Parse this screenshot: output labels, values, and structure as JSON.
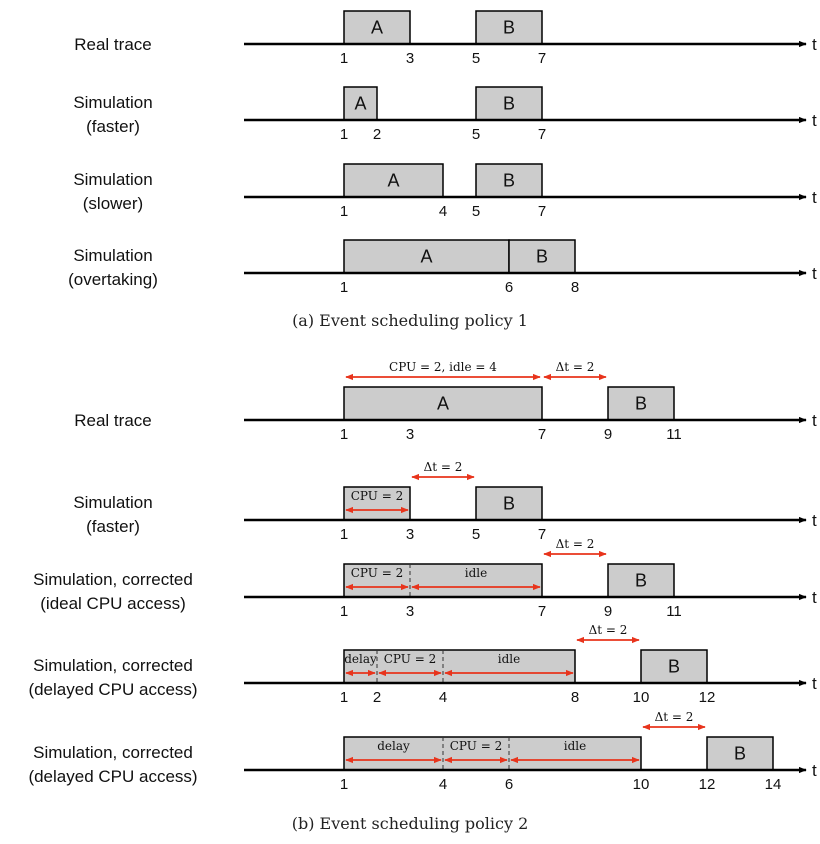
{
  "axis_label": "t",
  "panels": [
    {
      "caption": "(a) Event scheduling policy 1",
      "rows": [
        {
          "label": [
            "Real trace"
          ],
          "ticks": [
            1,
            3,
            5,
            7
          ],
          "boxes": [
            {
              "label": "A",
              "start": 1,
              "end": 3
            },
            {
              "label": "B",
              "start": 5,
              "end": 7
            }
          ]
        },
        {
          "label": [
            "Simulation",
            "(faster)"
          ],
          "ticks": [
            1,
            2,
            5,
            7
          ],
          "boxes": [
            {
              "label": "A",
              "start": 1,
              "end": 2
            },
            {
              "label": "B",
              "start": 5,
              "end": 7
            }
          ]
        },
        {
          "label": [
            "Simulation",
            "(slower)"
          ],
          "ticks": [
            1,
            4,
            5,
            7
          ],
          "boxes": [
            {
              "label": "A",
              "start": 1,
              "end": 4
            },
            {
              "label": "B",
              "start": 5,
              "end": 7
            }
          ]
        },
        {
          "label": [
            "Simulation",
            "(overtaking)"
          ],
          "ticks": [
            1,
            6,
            8
          ],
          "boxes": [
            {
              "label": "A",
              "start": 1,
              "end": 6
            },
            {
              "label": "B",
              "start": 6,
              "end": 8
            }
          ]
        }
      ]
    },
    {
      "caption": "(b) Event scheduling policy 2",
      "rows": [
        {
          "label": [
            "Real trace"
          ],
          "ticks": [
            1,
            3,
            7,
            9,
            11
          ],
          "boxes": [
            {
              "label": "A",
              "start": 1,
              "end": 7
            },
            {
              "label": "B",
              "start": 9,
              "end": 11
            }
          ],
          "annotations": [
            {
              "text": "CPU = 2, idle = 4",
              "start": 1,
              "end": 7
            },
            {
              "text": "Δt = 2",
              "start": 7,
              "end": 9
            }
          ]
        },
        {
          "label": [
            "Simulation",
            "(faster)"
          ],
          "ticks": [
            1,
            3,
            5,
            7
          ],
          "boxes": [
            {
              "label": "",
              "start": 1,
              "end": 3,
              "segments": [
                {
                  "text": "CPU = 2",
                  "start": 1,
                  "end": 3
                }
              ]
            },
            {
              "label": "B",
              "start": 5,
              "end": 7
            }
          ],
          "annotations": [
            {
              "text": "Δt = 2",
              "start": 3,
              "end": 5
            }
          ]
        },
        {
          "label": [
            "Simulation, corrected",
            "(ideal CPU access)"
          ],
          "ticks": [
            1,
            3,
            7,
            9,
            11
          ],
          "boxes": [
            {
              "label": "",
              "start": 1,
              "end": 7,
              "segments": [
                {
                  "text": "CPU = 2",
                  "start": 1,
                  "end": 3
                },
                {
                  "text": "idle",
                  "start": 3,
                  "end": 7
                }
              ]
            },
            {
              "label": "B",
              "start": 9,
              "end": 11
            }
          ],
          "annotations": [
            {
              "text": "Δt = 2",
              "start": 7,
              "end": 9
            }
          ]
        },
        {
          "label": [
            "Simulation, corrected",
            "(delayed CPU access)"
          ],
          "ticks": [
            1,
            2,
            4,
            8,
            10,
            12
          ],
          "boxes": [
            {
              "label": "",
              "start": 1,
              "end": 8,
              "segments": [
                {
                  "text": "delay",
                  "start": 1,
                  "end": 2
                },
                {
                  "text": "CPU = 2",
                  "start": 2,
                  "end": 4
                },
                {
                  "text": "idle",
                  "start": 4,
                  "end": 8
                }
              ]
            },
            {
              "label": "B",
              "start": 10,
              "end": 12
            }
          ],
          "annotations": [
            {
              "text": "Δt = 2",
              "start": 8,
              "end": 10
            }
          ]
        },
        {
          "label": [
            "Simulation, corrected",
            "(delayed CPU access)"
          ],
          "ticks": [
            1,
            4,
            6,
            10,
            12,
            14
          ],
          "boxes": [
            {
              "label": "",
              "start": 1,
              "end": 10,
              "segments": [
                {
                  "text": "delay",
                  "start": 1,
                  "end": 4
                },
                {
                  "text": "CPU = 2",
                  "start": 4,
                  "end": 6
                },
                {
                  "text": "idle",
                  "start": 6,
                  "end": 10
                }
              ]
            },
            {
              "label": "B",
              "start": 12,
              "end": 14
            }
          ],
          "annotations": [
            {
              "text": "Δt = 2",
              "start": 10,
              "end": 12
            }
          ]
        }
      ]
    }
  ],
  "colors": {
    "box_fill": "#cccccc",
    "arrow": "#e8341c",
    "axis": "#000000"
  }
}
